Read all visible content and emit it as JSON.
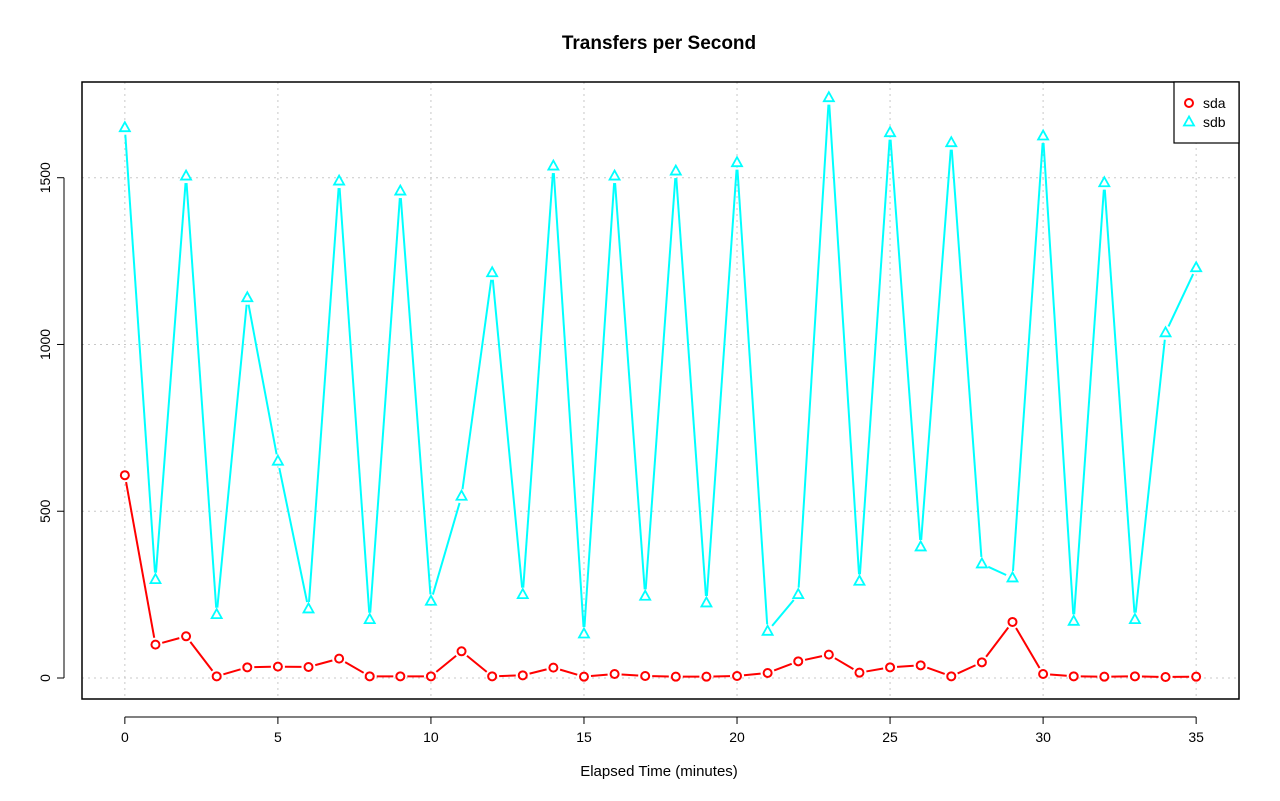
{
  "chart_data": {
    "type": "line",
    "title": "Transfers per Second",
    "xlabel": "Elapsed Time (minutes)",
    "ylabel": "",
    "xlim": [
      -1.4,
      36.4
    ],
    "ylim": [
      -63,
      1787
    ],
    "xticks": [
      0,
      5,
      10,
      15,
      20,
      25,
      30,
      35
    ],
    "yticks": [
      0,
      500,
      1000,
      1500
    ],
    "grid": true,
    "legend_position": "top-right",
    "x": [
      0,
      1,
      2,
      3,
      4,
      5,
      6,
      7,
      8,
      9,
      10,
      11,
      12,
      13,
      14,
      15,
      16,
      17,
      18,
      19,
      20,
      21,
      22,
      23,
      24,
      25,
      26,
      27,
      28,
      29,
      30,
      31,
      32,
      33,
      34,
      35
    ],
    "series": [
      {
        "name": "sda",
        "color": "#ff0000",
        "marker": "circle",
        "values": [
          608,
          100,
          125,
          5,
          32,
          34,
          33,
          58,
          5,
          5,
          5,
          80,
          5,
          8,
          31,
          4,
          12,
          6,
          4,
          4,
          6,
          15,
          50,
          70,
          16,
          32,
          38,
          5,
          47,
          168,
          12,
          5,
          4,
          5,
          3,
          4
        ]
      },
      {
        "name": "sdb",
        "color": "#00ffff",
        "marker": "triangle",
        "values": [
          1650,
          295,
          1505,
          190,
          1140,
          650,
          207,
          1490,
          175,
          1460,
          230,
          545,
          1215,
          250,
          1535,
          132,
          1505,
          245,
          1520,
          225,
          1545,
          140,
          250,
          1740,
          290,
          1635,
          393,
          1605,
          342,
          300,
          1625,
          170,
          1485,
          175,
          1035,
          1230
        ]
      }
    ]
  }
}
